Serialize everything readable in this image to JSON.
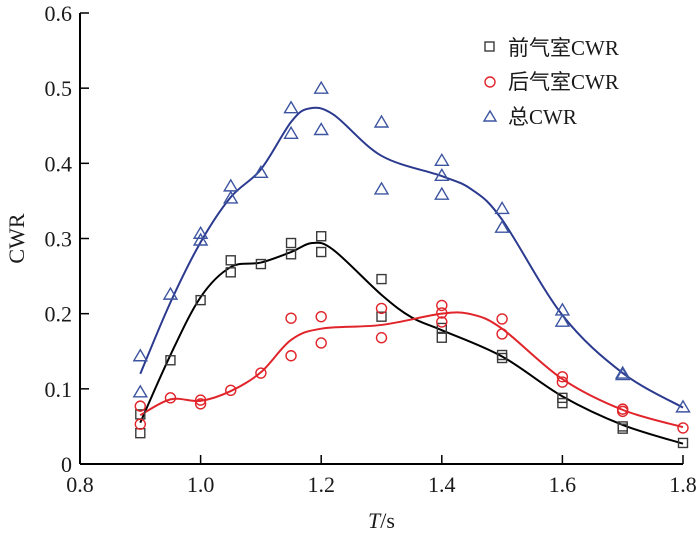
{
  "chart_data": {
    "type": "scatter",
    "title": "",
    "xlabel_italic": "T",
    "xlabel_suffix": "/s",
    "ylabel": "CWR",
    "xlim": [
      0.8,
      1.8
    ],
    "ylim": [
      0,
      0.6
    ],
    "x_ticks": [
      "0.8",
      "1.0",
      "1.2",
      "1.4",
      "1.6",
      "1.8"
    ],
    "x_tick_values": [
      0.8,
      1.0,
      1.2,
      1.4,
      1.6,
      1.8
    ],
    "y_ticks": [
      "0",
      "0.1",
      "0.2",
      "0.3",
      "0.4",
      "0.5",
      "0.6"
    ],
    "y_tick_values": [
      0,
      0.1,
      0.2,
      0.3,
      0.4,
      0.5,
      0.6
    ],
    "grid": false,
    "legend_position": "top-right",
    "series": [
      {
        "name": "前气室CWR",
        "marker": "square",
        "color": "#3a3a3a",
        "line_color": "#000000",
        "points": [
          [
            0.9,
            0.066
          ],
          [
            0.9,
            0.041
          ],
          [
            0.95,
            0.138
          ],
          [
            1.0,
            0.218
          ],
          [
            1.05,
            0.271
          ],
          [
            1.05,
            0.255
          ],
          [
            1.1,
            0.266
          ],
          [
            1.15,
            0.294
          ],
          [
            1.15,
            0.279
          ],
          [
            1.2,
            0.303
          ],
          [
            1.2,
            0.282
          ],
          [
            1.3,
            0.246
          ],
          [
            1.3,
            0.196
          ],
          [
            1.4,
            0.181
          ],
          [
            1.4,
            0.168
          ],
          [
            1.5,
            0.145
          ],
          [
            1.5,
            0.141
          ],
          [
            1.6,
            0.088
          ],
          [
            1.6,
            0.081
          ],
          [
            1.7,
            0.05
          ],
          [
            1.7,
            0.047
          ],
          [
            1.8,
            0.028
          ]
        ],
        "fit_curve": [
          [
            0.9,
            0.055
          ],
          [
            0.95,
            0.145
          ],
          [
            1.0,
            0.222
          ],
          [
            1.05,
            0.262
          ],
          [
            1.1,
            0.268
          ],
          [
            1.15,
            0.282
          ],
          [
            1.185,
            0.294
          ],
          [
            1.22,
            0.285
          ],
          [
            1.3,
            0.225
          ],
          [
            1.35,
            0.195
          ],
          [
            1.4,
            0.178
          ],
          [
            1.5,
            0.143
          ],
          [
            1.6,
            0.09
          ],
          [
            1.7,
            0.052
          ],
          [
            1.8,
            0.027
          ]
        ]
      },
      {
        "name": "后气室CWR",
        "marker": "circle",
        "color": "#e0242a",
        "line_color": "#e0242a",
        "points": [
          [
            0.9,
            0.077
          ],
          [
            0.9,
            0.053
          ],
          [
            0.95,
            0.088
          ],
          [
            1.0,
            0.085
          ],
          [
            1.0,
            0.08
          ],
          [
            1.05,
            0.098
          ],
          [
            1.1,
            0.121
          ],
          [
            1.15,
            0.194
          ],
          [
            1.15,
            0.144
          ],
          [
            1.2,
            0.196
          ],
          [
            1.2,
            0.161
          ],
          [
            1.3,
            0.207
          ],
          [
            1.3,
            0.168
          ],
          [
            1.4,
            0.211
          ],
          [
            1.4,
            0.201
          ],
          [
            1.4,
            0.189
          ],
          [
            1.5,
            0.193
          ],
          [
            1.5,
            0.173
          ],
          [
            1.6,
            0.116
          ],
          [
            1.6,
            0.109
          ],
          [
            1.7,
            0.073
          ],
          [
            1.7,
            0.07
          ],
          [
            1.8,
            0.048
          ]
        ],
        "fit_curve": [
          [
            0.9,
            0.065
          ],
          [
            0.95,
            0.086
          ],
          [
            1.0,
            0.084
          ],
          [
            1.05,
            0.097
          ],
          [
            1.1,
            0.122
          ],
          [
            1.15,
            0.165
          ],
          [
            1.2,
            0.18
          ],
          [
            1.3,
            0.185
          ],
          [
            1.4,
            0.2
          ],
          [
            1.45,
            0.199
          ],
          [
            1.5,
            0.18
          ],
          [
            1.6,
            0.113
          ],
          [
            1.7,
            0.072
          ],
          [
            1.8,
            0.049
          ]
        ]
      },
      {
        "name": "总CWR",
        "marker": "triangle",
        "color": "#3d55a0",
        "line_color": "#2b3a8f",
        "points": [
          [
            0.9,
            0.144
          ],
          [
            0.9,
            0.096
          ],
          [
            0.95,
            0.226
          ],
          [
            1.0,
            0.307
          ],
          [
            1.0,
            0.298
          ],
          [
            1.05,
            0.37
          ],
          [
            1.05,
            0.354
          ],
          [
            1.1,
            0.388
          ],
          [
            1.15,
            0.474
          ],
          [
            1.15,
            0.44
          ],
          [
            1.2,
            0.5
          ],
          [
            1.2,
            0.445
          ],
          [
            1.3,
            0.455
          ],
          [
            1.3,
            0.366
          ],
          [
            1.4,
            0.404
          ],
          [
            1.4,
            0.384
          ],
          [
            1.4,
            0.359
          ],
          [
            1.5,
            0.34
          ],
          [
            1.5,
            0.315
          ],
          [
            1.6,
            0.205
          ],
          [
            1.6,
            0.19
          ],
          [
            1.7,
            0.121
          ],
          [
            1.7,
            0.119
          ],
          [
            1.8,
            0.076
          ]
        ],
        "fit_curve": [
          [
            0.9,
            0.12
          ],
          [
            0.95,
            0.215
          ],
          [
            1.0,
            0.295
          ],
          [
            1.05,
            0.355
          ],
          [
            1.1,
            0.392
          ],
          [
            1.15,
            0.455
          ],
          [
            1.18,
            0.473
          ],
          [
            1.22,
            0.465
          ],
          [
            1.3,
            0.41
          ],
          [
            1.4,
            0.383
          ],
          [
            1.45,
            0.365
          ],
          [
            1.5,
            0.325
          ],
          [
            1.6,
            0.198
          ],
          [
            1.7,
            0.121
          ],
          [
            1.8,
            0.075
          ]
        ]
      }
    ]
  }
}
